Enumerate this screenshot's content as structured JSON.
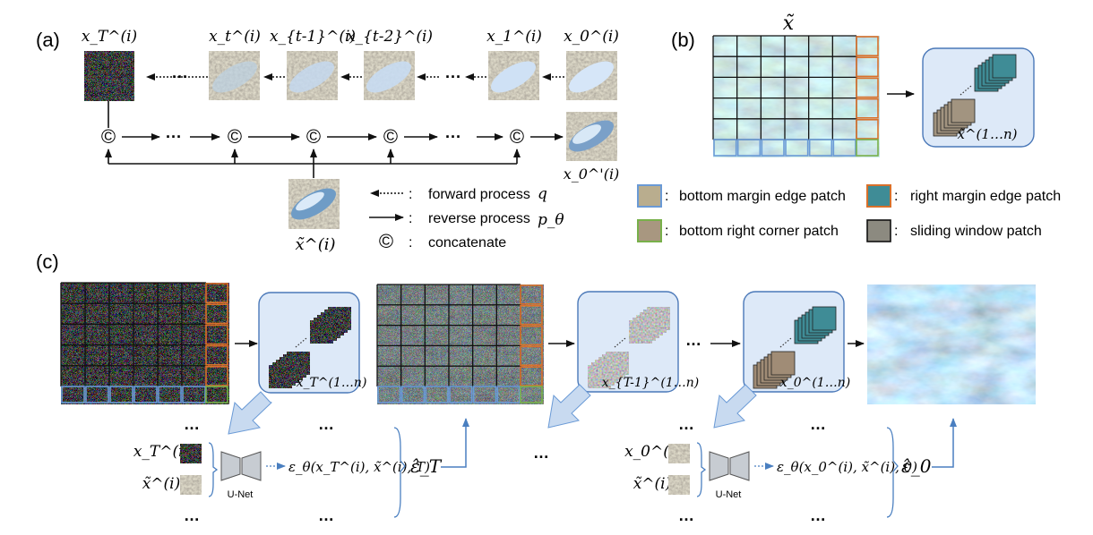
{
  "panel_labels": {
    "a": "(a)",
    "b": "(b)",
    "c": "(c)"
  },
  "panel_a": {
    "top_labels": [
      "x_T^(i)",
      "x_t^(i)",
      "x_{t-1}^(i)",
      "x_{t-2}^(i)",
      "x_1^(i)",
      "x_0^(i)"
    ],
    "output_label": "x_0^'(i)",
    "condition_label": "x̃^(i)",
    "ellipsis": "···",
    "concat_symbol": "©",
    "legend": [
      {
        "text": "forward process",
        "symbol": "q"
      },
      {
        "text": "reverse process",
        "symbol": "p_θ"
      },
      {
        "text": "concatenate",
        "symbol": ""
      }
    ],
    "legend_sep": ":"
  },
  "panel_b": {
    "image_label": "x̃",
    "stack_label": "x̃^(1…n)",
    "legend": [
      "bottom margin edge patch",
      "right margin edge patch",
      "bottom right corner patch",
      "sliding window patch"
    ]
  },
  "panel_c": {
    "stack_labels": [
      "x_T^(1…n)",
      "x_{T-1}^(1…n)",
      "x_0^(1…n)"
    ],
    "unet_label": "U-Net",
    "left_inputs": [
      "x_T^(i)",
      "x̃^(i)"
    ],
    "right_inputs": [
      "x_0^(i)",
      "x̃^(i)"
    ],
    "left_output": "ε_θ(x_T^(i), x̃^(i), T)",
    "right_output": "ε_θ(x_0^(i), x̃^(i), 0)",
    "left_eps": "ε̂_T",
    "right_eps": "ε̂_0",
    "dots": "…"
  },
  "colors": {
    "blue_patch": "#6a9ad6",
    "orange_patch": "#d9702a",
    "green_patch": "#78b04a",
    "box_fill": "#dde9f8",
    "box_stroke": "#4a78b8",
    "arrow_fill": "#c8daf0"
  }
}
